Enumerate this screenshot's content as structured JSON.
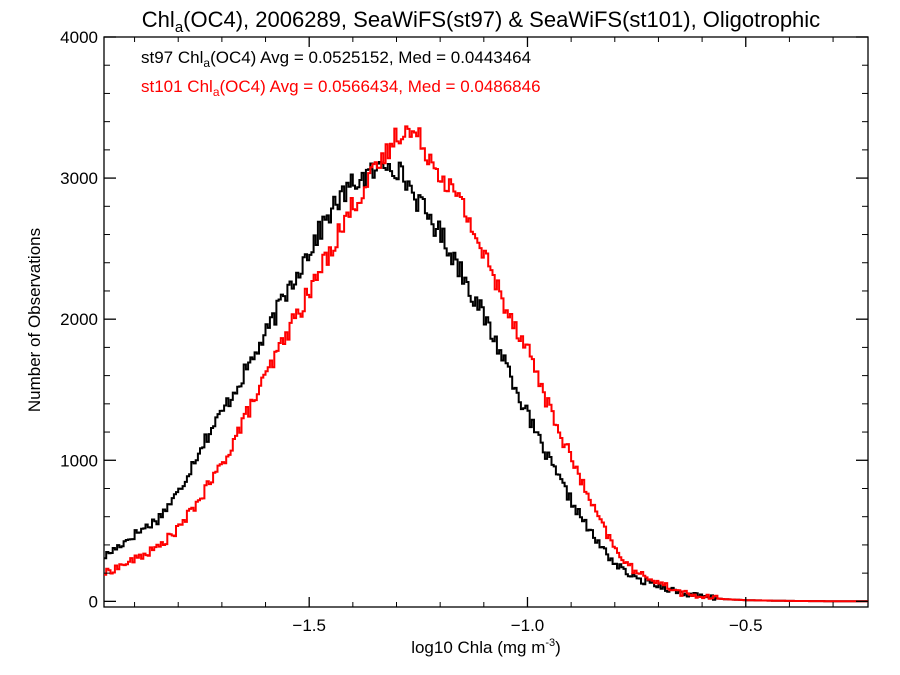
{
  "chart_data": {
    "type": "line",
    "title": {
      "pre": "Chl",
      "sub": "a",
      "post": "(OC4), 2006289, SeaWiFS(st97) & SeaWiFS(st101), Oligotrophic"
    },
    "xlabel": {
      "pre": "log10 Chla (mg m",
      "sup": "-3",
      "post": ")"
    },
    "ylabel": "Number of Observations",
    "xlim": [
      -1.97,
      -0.22
    ],
    "ylim": [
      -40,
      4000
    ],
    "xticks": [
      {
        "value": -1.5,
        "label": "−1.5"
      },
      {
        "value": -1.0,
        "label": "−1.0"
      },
      {
        "value": -0.5,
        "label": "−0.5"
      }
    ],
    "yticks": [
      {
        "value": 0,
        "label": "0"
      },
      {
        "value": 1000,
        "label": "1000"
      },
      {
        "value": 2000,
        "label": "2000"
      },
      {
        "value": 3000,
        "label": "3000"
      },
      {
        "value": 4000,
        "label": "4000"
      }
    ],
    "grid": false,
    "step": true,
    "series": [
      {
        "name": "st97",
        "color": "#000000",
        "legend": {
          "pre": "st97 Chl",
          "sub": "a",
          "post": "(OC4) Avg = 0.0525152, Med = 0.0443464"
        },
        "points": [
          [
            -1.97,
            320
          ],
          [
            -1.9,
            480
          ],
          [
            -1.85,
            580
          ],
          [
            -1.8,
            780
          ],
          [
            -1.75,
            1100
          ],
          [
            -1.7,
            1350
          ],
          [
            -1.65,
            1620
          ],
          [
            -1.6,
            1900
          ],
          [
            -1.55,
            2220
          ],
          [
            -1.5,
            2500
          ],
          [
            -1.45,
            2780
          ],
          [
            -1.4,
            2970
          ],
          [
            -1.35,
            3050
          ],
          [
            -1.32,
            3120
          ],
          [
            -1.3,
            3060
          ],
          [
            -1.28,
            2980
          ],
          [
            -1.25,
            2820
          ],
          [
            -1.2,
            2600
          ],
          [
            -1.15,
            2320
          ],
          [
            -1.1,
            2000
          ],
          [
            -1.05,
            1680
          ],
          [
            -1.0,
            1300
          ],
          [
            -0.95,
            980
          ],
          [
            -0.9,
            700
          ],
          [
            -0.85,
            450
          ],
          [
            -0.8,
            260
          ],
          [
            -0.75,
            150
          ],
          [
            -0.72,
            140
          ],
          [
            -0.7,
            110
          ],
          [
            -0.65,
            60
          ],
          [
            -0.6,
            30
          ],
          [
            -0.55,
            15
          ],
          [
            -0.5,
            8
          ],
          [
            -0.4,
            3
          ],
          [
            -0.3,
            1
          ],
          [
            -0.22,
            1
          ]
        ]
      },
      {
        "name": "st101",
        "color": "#ff0000",
        "legend": {
          "pre": "st101 Chl",
          "sub": "a",
          "post": "(OC4) Avg = 0.0566434, Med = 0.0486846"
        },
        "points": [
          [
            -1.97,
            200
          ],
          [
            -1.9,
            300
          ],
          [
            -1.85,
            380
          ],
          [
            -1.8,
            520
          ],
          [
            -1.75,
            740
          ],
          [
            -1.7,
            980
          ],
          [
            -1.65,
            1300
          ],
          [
            -1.6,
            1600
          ],
          [
            -1.55,
            1920
          ],
          [
            -1.5,
            2200
          ],
          [
            -1.45,
            2520
          ],
          [
            -1.4,
            2820
          ],
          [
            -1.35,
            3050
          ],
          [
            -1.32,
            3200
          ],
          [
            -1.3,
            3320
          ],
          [
            -1.28,
            3340
          ],
          [
            -1.25,
            3280
          ],
          [
            -1.22,
            3120
          ],
          [
            -1.2,
            3030
          ],
          [
            -1.15,
            2800
          ],
          [
            -1.1,
            2440
          ],
          [
            -1.05,
            2080
          ],
          [
            -1.0,
            1780
          ],
          [
            -0.95,
            1350
          ],
          [
            -0.9,
            1000
          ],
          [
            -0.85,
            650
          ],
          [
            -0.8,
            360
          ],
          [
            -0.75,
            190
          ],
          [
            -0.72,
            170
          ],
          [
            -0.7,
            130
          ],
          [
            -0.65,
            60
          ],
          [
            -0.6,
            30
          ],
          [
            -0.55,
            15
          ],
          [
            -0.5,
            8
          ],
          [
            -0.4,
            3
          ],
          [
            -0.3,
            1
          ],
          [
            -0.22,
            1
          ]
        ]
      }
    ]
  }
}
